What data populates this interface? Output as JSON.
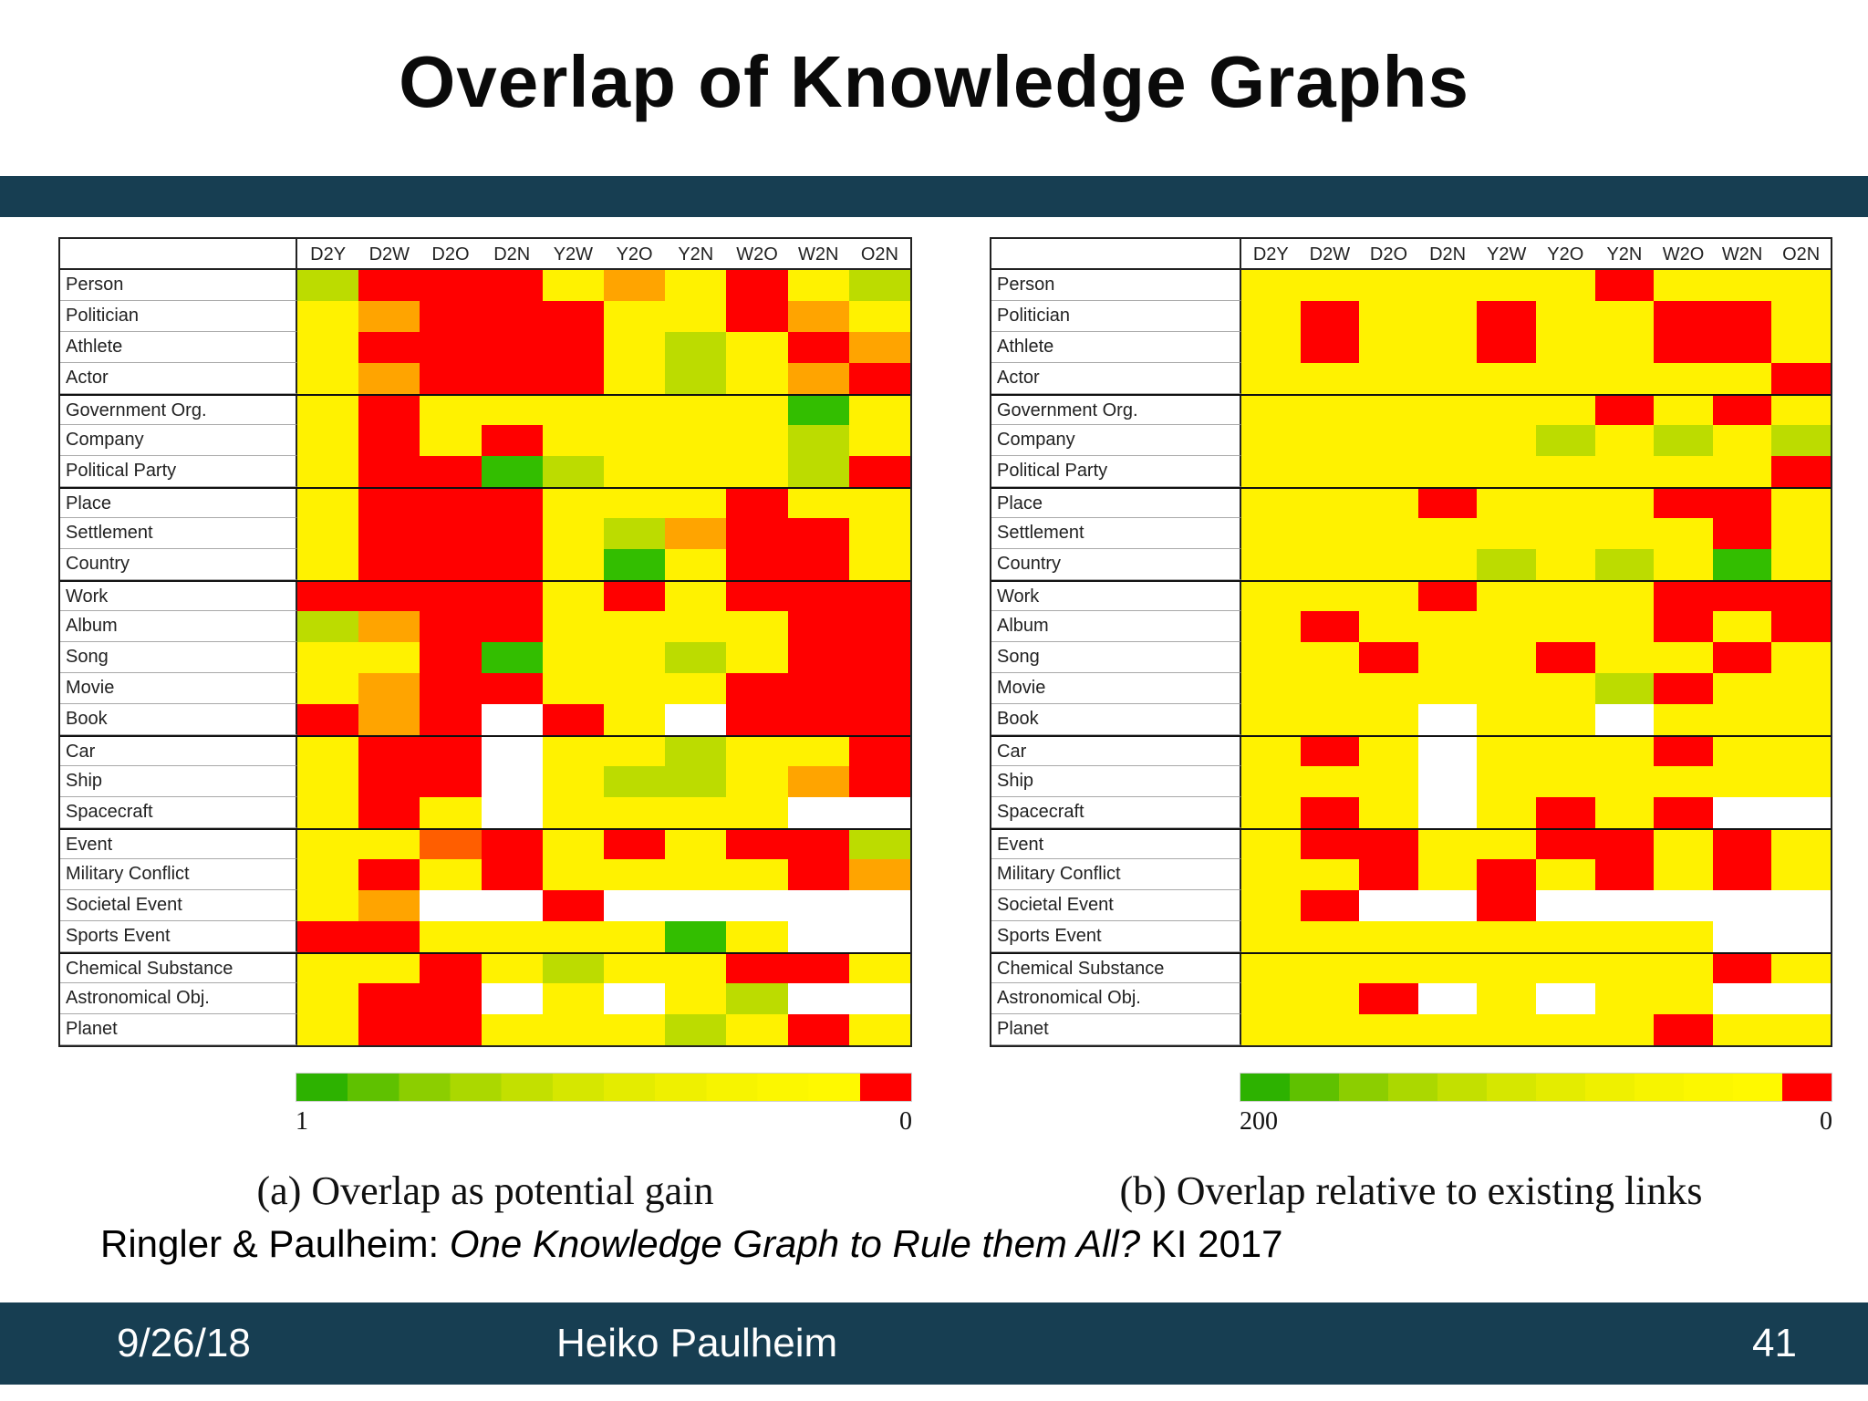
{
  "title": "Overlap of Knowledge Graphs",
  "banner_color": "#173E52",
  "palette": {
    "G": "#33BE00",
    "YG": "#BCDC00",
    "Y": "#FFF200",
    "O": "#FFA400",
    "OR": "#FF5E00",
    "R": "#FF0000",
    "W": "#FFFFFF"
  },
  "legend_stops": [
    "#2DB200",
    "#5FC100",
    "#8CCE00",
    "#ABD800",
    "#C3E000",
    "#D6E700",
    "#E4EC00",
    "#EFF000",
    "#F7F400",
    "#FCF700",
    "#FFF900",
    "#FF0000"
  ],
  "chart_data": [
    {
      "type": "heatmap",
      "caption": "(a) Overlap as potential gain",
      "legend_left": "1",
      "legend_right": "0",
      "scale_note": "green=1 (high potential gain) to red=0, white=no data",
      "columns": [
        "D2Y",
        "D2W",
        "D2O",
        "D2N",
        "Y2W",
        "Y2O",
        "Y2N",
        "W2O",
        "W2N",
        "O2N"
      ],
      "rows": [
        "Person",
        "Politician",
        "Athlete",
        "Actor",
        "Government Org.",
        "Company",
        "Political Party",
        "Place",
        "Settlement",
        "Country",
        "Work",
        "Album",
        "Song",
        "Movie",
        "Book",
        "Car",
        "Ship",
        "Spacecraft",
        "Event",
        "Military Conflict",
        "Societal Event",
        "Sports Event",
        "Chemical Substance",
        "Astronomical Obj.",
        "Planet"
      ],
      "row_groups_start": [
        4,
        7,
        10,
        15,
        18,
        22
      ],
      "cells": [
        "YG R R R Y O Y R Y YG",
        "Y O R R R Y Y R O Y",
        "Y R R R R Y YG Y R O",
        "Y O R R R Y YG Y O R",
        "Y R Y Y Y Y Y Y G Y",
        "Y R Y R Y Y Y Y YG Y",
        "Y R R G YG Y Y Y YG R",
        "Y R R R Y Y Y R Y Y",
        "Y R R R Y YG O R R Y",
        "Y R R R Y G Y R R Y",
        "R R R R Y R Y R R R",
        "YG O R R Y Y Y Y R R",
        "Y Y R G Y Y YG Y R R",
        "Y O R R Y Y Y R R R",
        "R O R W R Y W R R R",
        "Y R R W Y Y YG Y Y R",
        "Y R R W Y YG YG Y O R",
        "Y R Y W Y Y Y Y W W",
        "Y Y OR R Y R Y R R YG",
        "Y R Y R Y Y Y Y R O",
        "Y O W W R W W W W W",
        "R R Y Y Y Y G Y W W",
        "Y Y R Y YG Y Y R R Y",
        "Y R R W Y W Y YG W W",
        "Y R R Y Y Y YG Y R Y"
      ]
    },
    {
      "type": "heatmap",
      "caption": "(b) Overlap relative to existing links",
      "legend_left": "200",
      "legend_right": "0",
      "scale_note": "green=200 (high relative overlap) to red=0, white=no data",
      "columns": [
        "D2Y",
        "D2W",
        "D2O",
        "D2N",
        "Y2W",
        "Y2O",
        "Y2N",
        "W2O",
        "W2N",
        "O2N"
      ],
      "rows": [
        "Person",
        "Politician",
        "Athlete",
        "Actor",
        "Government Org.",
        "Company",
        "Political Party",
        "Place",
        "Settlement",
        "Country",
        "Work",
        "Album",
        "Song",
        "Movie",
        "Book",
        "Car",
        "Ship",
        "Spacecraft",
        "Event",
        "Military Conflict",
        "Societal Event",
        "Sports Event",
        "Chemical Substance",
        "Astronomical Obj.",
        "Planet"
      ],
      "row_groups_start": [
        4,
        7,
        10,
        15,
        18,
        22
      ],
      "cells": [
        "Y Y Y Y Y Y R Y Y Y",
        "Y R Y Y R Y Y R R Y",
        "Y R Y Y R Y Y R R Y",
        "Y Y Y Y Y Y Y Y Y R",
        "Y Y Y Y Y Y R Y R Y",
        "Y Y Y Y Y YG Y YG Y YG",
        "Y Y Y Y Y Y Y Y Y R",
        "Y Y Y R Y Y Y R R Y",
        "Y Y Y Y Y Y Y Y R Y",
        "Y Y Y Y YG Y YG Y G Y",
        "Y Y Y R Y Y Y R R R",
        "Y R Y Y Y Y Y R Y R",
        "Y Y R Y Y R Y Y R Y",
        "Y Y Y Y Y Y YG R Y Y",
        "Y Y Y W Y Y W Y Y Y",
        "Y R Y W Y Y Y R Y Y",
        "Y Y Y W Y Y Y Y Y Y",
        "Y R Y W Y R Y R W W",
        "Y R R Y Y R R Y R Y",
        "Y Y R Y R Y R Y R Y",
        "Y R W W R W W W W W",
        "Y Y Y Y Y Y Y Y W W",
        "Y Y Y Y Y Y Y Y R Y",
        "Y Y R W Y W Y Y W W",
        "Y Y Y Y Y Y Y R Y Y"
      ]
    }
  ],
  "citation": {
    "prefix": "Ringler & Paulheim: ",
    "italic": "One Knowledge Graph to Rule them All?",
    "suffix": " KI 2017"
  },
  "footer": {
    "date": "9/26/18",
    "author": "Heiko Paulheim",
    "page": "41"
  }
}
